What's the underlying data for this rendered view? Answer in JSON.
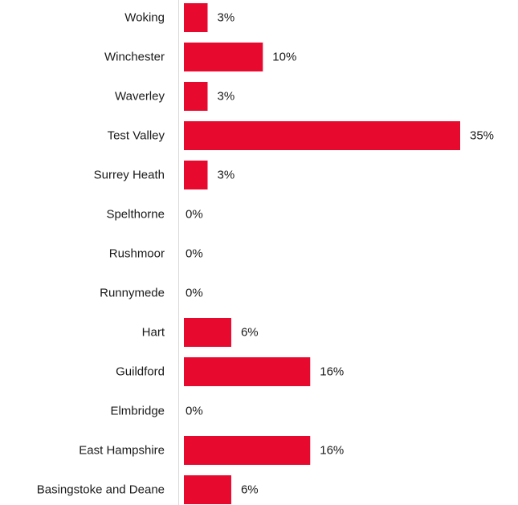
{
  "chart_data": {
    "type": "bar",
    "orientation": "horizontal",
    "categories": [
      "Woking",
      "Winchester",
      "Waverley",
      "Test Valley",
      "Surrey Heath",
      "Spelthorne",
      "Rushmoor",
      "Runnymede",
      "Hart",
      "Guildford",
      "Elmbridge",
      "East Hampshire",
      "Basingstoke and Deane"
    ],
    "values": [
      3,
      10,
      3,
      35,
      3,
      0,
      0,
      0,
      6,
      16,
      0,
      16,
      6
    ],
    "value_labels": [
      "3%",
      "10%",
      "3%",
      "35%",
      "3%",
      "0%",
      "0%",
      "0%",
      "6%",
      "16%",
      "0%",
      "16%",
      "6%"
    ],
    "unit": "%",
    "xlim": [
      0,
      35
    ],
    "grid": false,
    "legend": "none",
    "bar_color": "#e8092e",
    "axis_color": "#d9d9d9"
  }
}
